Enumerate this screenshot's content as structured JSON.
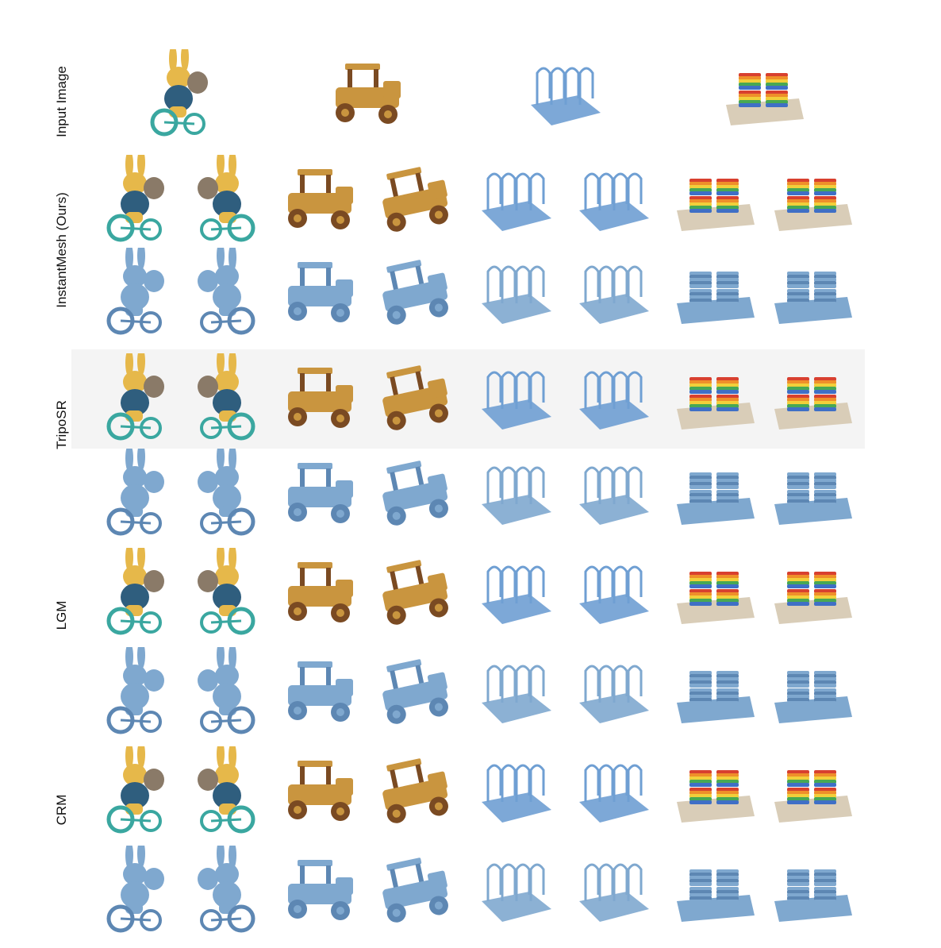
{
  "figure": {
    "rows": [
      {
        "label": "Input Image",
        "kind": "input"
      },
      {
        "label": "InstantMesh (Ours)",
        "kind": "method"
      },
      {
        "label": "TripoSR",
        "kind": "method"
      },
      {
        "label": "LGM",
        "kind": "method"
      },
      {
        "label": "CRM",
        "kind": "method"
      }
    ],
    "objects": [
      "bunny-on-bicycle",
      "toy-car",
      "wire-rack",
      "stacking-toy"
    ],
    "row_types": [
      "rgb-render",
      "mesh-render"
    ]
  },
  "colors": {
    "mesh": "#7fa8cf",
    "mesh_dark": "#5d87b3",
    "rack": "#6f9fd3",
    "wood": "#c9953f",
    "wood_dark": "#7a4a22",
    "bunny_yellow": "#e6b84a",
    "bunny_blue": "#2f5e7e",
    "bike": "#3aa7a0",
    "base": "#d9cdb8",
    "toy_red": "#d8402f",
    "toy_orange": "#ef8f2a",
    "toy_yellow": "#f2cf3a",
    "toy_green": "#48a853",
    "toy_blue": "#3f6fc6",
    "label": "#111111"
  }
}
